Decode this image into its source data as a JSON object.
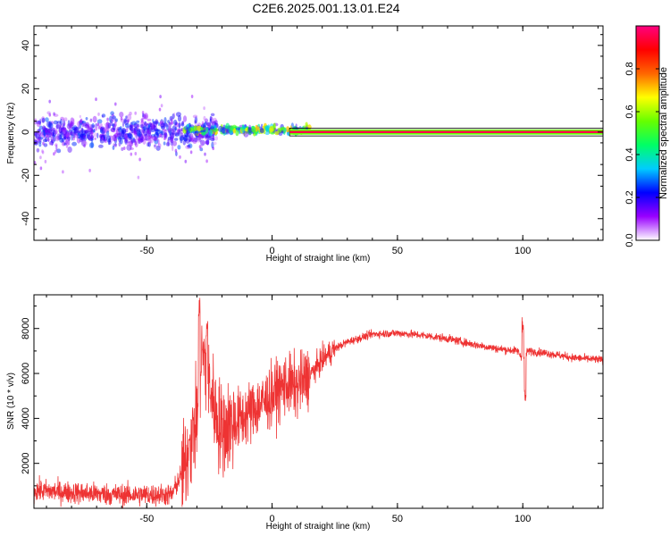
{
  "title": "C2E6.2025.001.13.01.E24",
  "chart_data": [
    {
      "type": "heatmap",
      "xlabel": "Height of straight line (km)",
      "ylabel": "Frequency (Hz)",
      "xlim": [
        -95,
        132
      ],
      "ylim": [
        -50,
        49
      ],
      "x_ticks": [
        -50,
        0,
        50,
        100
      ],
      "x_tick_labels": [
        "-50",
        "0",
        "50",
        "100"
      ],
      "y_ticks": [
        -40,
        -20,
        0,
        20,
        40
      ],
      "y_tick_labels": [
        "-40",
        "-20",
        "0",
        "20",
        "40"
      ],
      "colorbar": {
        "label": "Normalized spectral amplitude",
        "range": [
          0,
          1
        ],
        "ticks": [
          0.0,
          0.2,
          0.4,
          0.6,
          0.8
        ],
        "tick_labels": [
          "0.0",
          "0.2",
          "0.4",
          "0.6",
          "0.8"
        ],
        "colors": [
          "#ffffff",
          "#9900ff",
          "#0000ff",
          "#00ccff",
          "#00ff66",
          "#66ff00",
          "#ffff00",
          "#ff6600",
          "#ff0000",
          "#ff0080"
        ]
      },
      "regions": [
        {
          "x_range": [
            -95,
            -22
          ],
          "freq_center": 0,
          "freq_spread": 12,
          "amplitude": 0.25
        },
        {
          "x_range": [
            -35,
            15
          ],
          "freq_center": 1,
          "freq_spread": 3,
          "amplitude": 0.65
        },
        {
          "x_range": [
            15,
            132
          ],
          "freq_center": 0,
          "freq_spread": 1,
          "amplitude": 0.95
        }
      ]
    },
    {
      "type": "line",
      "xlabel": "Height of straight line (km)",
      "ylabel": "SNR (10 * v/v)",
      "xlim": [
        -95,
        132
      ],
      "ylim": [
        0,
        9500
      ],
      "x_ticks": [
        -50,
        0,
        50,
        100
      ],
      "x_tick_labels": [
        "-50",
        "0",
        "50",
        "100"
      ],
      "y_ticks": [
        2000,
        4000,
        6000,
        8000
      ],
      "y_tick_labels": [
        "2000",
        "4000",
        "6000",
        "8000"
      ],
      "color": "#ee3333",
      "envelope": {
        "x": [
          -95,
          -80,
          -60,
          -40,
          -35,
          -30,
          -28,
          -25,
          -22,
          -20,
          -15,
          -10,
          -5,
          0,
          5,
          10,
          15,
          20,
          25,
          30,
          40,
          50,
          60,
          70,
          80,
          90,
          98,
          100,
          102,
          110,
          120,
          132
        ],
        "y": [
          800,
          700,
          600,
          600,
          1800,
          4000,
          7000,
          5500,
          4000,
          3500,
          3800,
          4200,
          4600,
          5000,
          5500,
          5400,
          5900,
          6600,
          7100,
          7400,
          7750,
          7800,
          7700,
          7550,
          7300,
          7100,
          7000,
          6600,
          7000,
          6900,
          6700,
          6600
        ]
      },
      "spikes": [
        {
          "x": -29,
          "y": 9400
        },
        {
          "x": -26,
          "y": 8500
        },
        {
          "x": -33,
          "y": 3300
        },
        {
          "x": 100,
          "y": 8600
        },
        {
          "x": 101,
          "y": 5300
        }
      ]
    }
  ]
}
